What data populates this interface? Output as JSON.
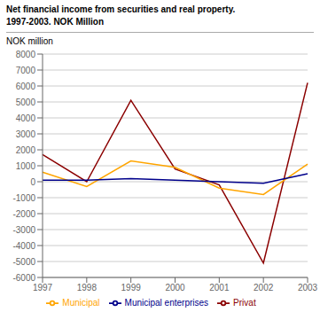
{
  "chart_data": {
    "type": "line",
    "title": "Net financial income from securities and real property.",
    "subtitle": "1997-2003. NOK Million",
    "ylabel": "NOK million",
    "categories": [
      "1997",
      "1998",
      "1999",
      "2000",
      "2001",
      "2002",
      "2003"
    ],
    "series": [
      {
        "name": "Privat",
        "color": "#8B0000",
        "values": [
          1700,
          0,
          5100,
          800,
          -200,
          -5100,
          6200
        ]
      },
      {
        "name": "Municipal",
        "color": "#FFA500",
        "values": [
          600,
          -300,
          1300,
          900,
          -400,
          -800,
          1100
        ]
      },
      {
        "name": "Municipal enterprises",
        "color": "#00008B",
        "values": [
          100,
          100,
          200,
          100,
          0,
          -100,
          500
        ]
      }
    ],
    "ylim": [
      -6000,
      8000
    ],
    "yticks": [
      -6000,
      -5000,
      -4000,
      -3000,
      -2000,
      -1000,
      0,
      1000,
      2000,
      3000,
      4000,
      5000,
      6000,
      7000,
      8000
    ],
    "grid": true,
    "legend": "bottom"
  }
}
